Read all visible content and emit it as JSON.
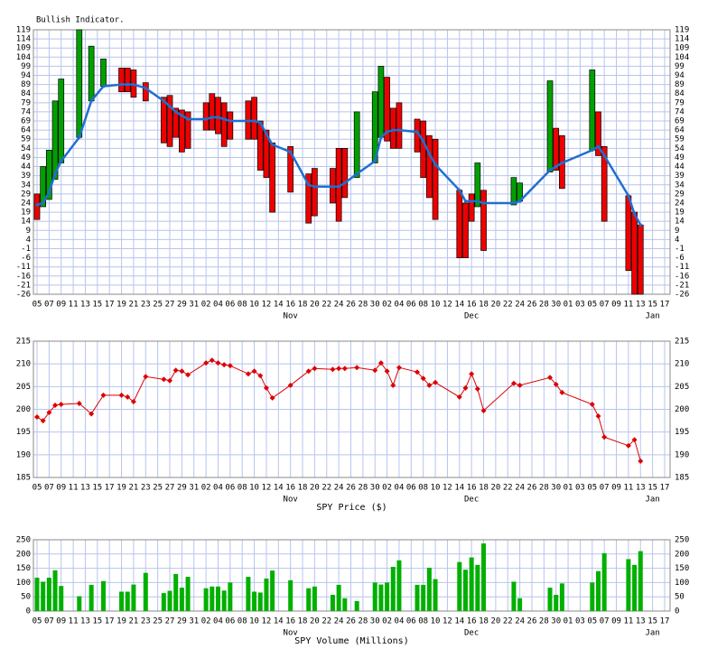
{
  "chart_data": {
    "x": [
      "10-05",
      "10-06",
      "10-07",
      "10-08",
      "10-09",
      "10-12",
      "10-14",
      "10-16",
      "10-19",
      "10-20",
      "10-21",
      "10-23",
      "10-26",
      "10-27",
      "10-28",
      "10-29",
      "10-30",
      "11-02",
      "11-03",
      "11-04",
      "11-05",
      "11-06",
      "11-09",
      "11-10",
      "11-11",
      "11-12",
      "11-13",
      "11-16",
      "11-19",
      "11-20",
      "11-23",
      "11-24",
      "11-25",
      "11-27",
      "11-30",
      "12-01",
      "12-02",
      "12-03",
      "12-04",
      "12-07",
      "12-08",
      "12-09",
      "12-10",
      "12-14",
      "12-15",
      "12-16",
      "12-17",
      "12-18",
      "12-23",
      "12-24",
      "12-29",
      "12-30",
      "12-31",
      "01-05",
      "01-06",
      "01-07",
      "01-11",
      "01-12",
      "01-13"
    ],
    "xticks": [
      {
        "value": "10-05",
        "label": "05"
      },
      {
        "value": "10-07",
        "label": "07"
      },
      {
        "value": "10-09",
        "label": "09"
      },
      {
        "value": "10-11",
        "label": "11"
      },
      {
        "value": "10-13",
        "label": "13"
      },
      {
        "value": "10-15",
        "label": "15"
      },
      {
        "value": "10-17",
        "label": "17"
      },
      {
        "value": "10-19",
        "label": "19"
      },
      {
        "value": "10-21",
        "label": "21"
      },
      {
        "value": "10-23",
        "label": "23"
      },
      {
        "value": "10-25",
        "label": "25"
      },
      {
        "value": "10-27",
        "label": "27"
      },
      {
        "value": "10-29",
        "label": "29"
      },
      {
        "value": "10-31",
        "label": "31"
      },
      {
        "value": "11-02",
        "label": "02"
      },
      {
        "value": "11-04",
        "label": "04"
      },
      {
        "value": "11-06",
        "label": "06"
      },
      {
        "value": "11-08",
        "label": "08"
      },
      {
        "value": "11-10",
        "label": "10"
      },
      {
        "value": "11-12",
        "label": "12"
      },
      {
        "value": "11-14",
        "label": "14"
      },
      {
        "value": "11-16",
        "label": "16"
      },
      {
        "value": "11-18",
        "label": "18"
      },
      {
        "value": "11-20",
        "label": "20"
      },
      {
        "value": "11-22",
        "label": "22"
      },
      {
        "value": "11-24",
        "label": "24"
      },
      {
        "value": "11-26",
        "label": "26"
      },
      {
        "value": "11-28",
        "label": "28"
      },
      {
        "value": "11-30",
        "label": "30"
      },
      {
        "value": "12-02",
        "label": "02"
      },
      {
        "value": "12-04",
        "label": "04"
      },
      {
        "value": "12-06",
        "label": "06"
      },
      {
        "value": "12-08",
        "label": "08"
      },
      {
        "value": "12-10",
        "label": "10"
      },
      {
        "value": "12-12",
        "label": "12"
      },
      {
        "value": "12-14",
        "label": "14"
      },
      {
        "value": "12-16",
        "label": "16"
      },
      {
        "value": "12-18",
        "label": "18"
      },
      {
        "value": "12-20",
        "label": "20"
      },
      {
        "value": "12-22",
        "label": "22"
      },
      {
        "value": "12-24",
        "label": "24"
      },
      {
        "value": "12-26",
        "label": "26"
      },
      {
        "value": "12-28",
        "label": "28"
      },
      {
        "value": "12-30",
        "label": "30"
      },
      {
        "value": "01-01",
        "label": "01"
      },
      {
        "value": "01-03",
        "label": "03"
      },
      {
        "value": "01-05",
        "label": "05"
      },
      {
        "value": "01-07",
        "label": "07"
      },
      {
        "value": "01-09",
        "label": "09"
      },
      {
        "value": "01-11",
        "label": "11"
      },
      {
        "value": "01-13",
        "label": "13"
      },
      {
        "value": "01-15",
        "label": "15"
      },
      {
        "value": "01-17",
        "label": "17"
      }
    ],
    "months": [
      {
        "value": "11-16",
        "label": "Nov"
      },
      {
        "value": "12-16",
        "label": "Dec"
      },
      {
        "value": "01-15",
        "label": "Jan"
      }
    ],
    "grid": true,
    "panels": [
      {
        "type": "floating_bar",
        "title": "Bullish Indicator.",
        "ylim": [
          -26,
          119
        ],
        "yticks": [
          119,
          114,
          109,
          104,
          99,
          94,
          89,
          84,
          79,
          74,
          69,
          64,
          59,
          54,
          49,
          44,
          39,
          34,
          29,
          24,
          19,
          14,
          9,
          4,
          -1,
          -6,
          -11,
          -16,
          -21,
          -26
        ],
        "up_color": "#00a000",
        "down_color": "#ee0000",
        "line_color": "#1f6fd0",
        "start": [
          29,
          22,
          26,
          37,
          46,
          60,
          80,
          88,
          98,
          98,
          97,
          90,
          82,
          83,
          76,
          75,
          74,
          79,
          84,
          82,
          79,
          74,
          80,
          82,
          69,
          64,
          57,
          55,
          40,
          43,
          43,
          54,
          54,
          38,
          46,
          60,
          93,
          76,
          79,
          70,
          69,
          61,
          59,
          31,
          24,
          29,
          22,
          31,
          23,
          25,
          41,
          65,
          61,
          53,
          74,
          55,
          28,
          19,
          12
        ],
        "end": [
          15,
          44,
          53,
          80,
          92,
          119,
          110,
          103,
          85,
          85,
          82,
          80,
          57,
          55,
          60,
          52,
          54,
          64,
          64,
          62,
          55,
          59,
          59,
          59,
          42,
          38,
          19,
          30,
          13,
          17,
          24,
          14,
          27,
          74,
          85,
          99,
          58,
          54,
          54,
          52,
          38,
          27,
          15,
          -6,
          -6,
          14,
          46,
          -2,
          38,
          35,
          91,
          42,
          32,
          97,
          50,
          14,
          -13,
          -26,
          -26
        ],
        "ma": [
          23,
          24,
          30,
          40,
          47,
          60,
          80,
          88,
          89,
          89,
          89,
          87,
          80,
          77,
          74,
          72,
          70,
          70,
          71,
          71,
          70,
          69,
          69,
          69,
          68,
          62,
          56,
          52,
          34,
          33,
          33,
          33,
          35,
          40,
          47,
          60,
          63,
          64,
          64,
          63,
          58,
          51,
          45,
          31,
          25,
          25,
          25,
          24,
          24,
          25,
          42,
          44,
          46,
          53,
          55,
          50,
          28,
          18,
          12
        ]
      },
      {
        "type": "line",
        "title": "SPY Price ($)",
        "ylim": [
          185,
          215
        ],
        "yticks": [
          215,
          210,
          205,
          200,
          195,
          190,
          185
        ],
        "color": "#dd0000",
        "values": [
          198.3,
          197.5,
          199.3,
          200.9,
          201.1,
          201.3,
          199.0,
          203.1,
          203.1,
          202.7,
          201.7,
          207.2,
          206.6,
          206.3,
          208.6,
          208.4,
          207.6,
          210.2,
          210.8,
          210.2,
          209.8,
          209.6,
          207.8,
          208.4,
          207.4,
          204.7,
          202.5,
          205.3,
          208.4,
          209.0,
          208.8,
          209.0,
          209.0,
          209.2,
          208.6,
          210.2,
          208.4,
          205.3,
          209.2,
          208.2,
          206.8,
          205.3,
          205.9,
          202.7,
          204.7,
          207.8,
          204.5,
          199.7,
          205.7,
          205.3,
          207.0,
          205.5,
          203.7,
          201.1,
          198.5,
          193.9,
          192.0,
          193.3,
          188.6
        ]
      },
      {
        "type": "bar",
        "title": "SPY Volume (Millions)",
        "ylim": [
          0,
          250
        ],
        "yticks": [
          250,
          200,
          150,
          100,
          50,
          0
        ],
        "color": "#00b000",
        "values": [
          117,
          103,
          117,
          143,
          88,
          52,
          92,
          105,
          68,
          68,
          93,
          134,
          63,
          71,
          130,
          82,
          120,
          80,
          86,
          86,
          72,
          100,
          120,
          68,
          65,
          114,
          142,
          108,
          80,
          86,
          57,
          92,
          45,
          35,
          100,
          93,
          100,
          155,
          178,
          92,
          92,
          152,
          112,
          172,
          145,
          188,
          162,
          237,
          103,
          45,
          82,
          57,
          97,
          100,
          140,
          203,
          182,
          162,
          210
        ]
      }
    ]
  }
}
